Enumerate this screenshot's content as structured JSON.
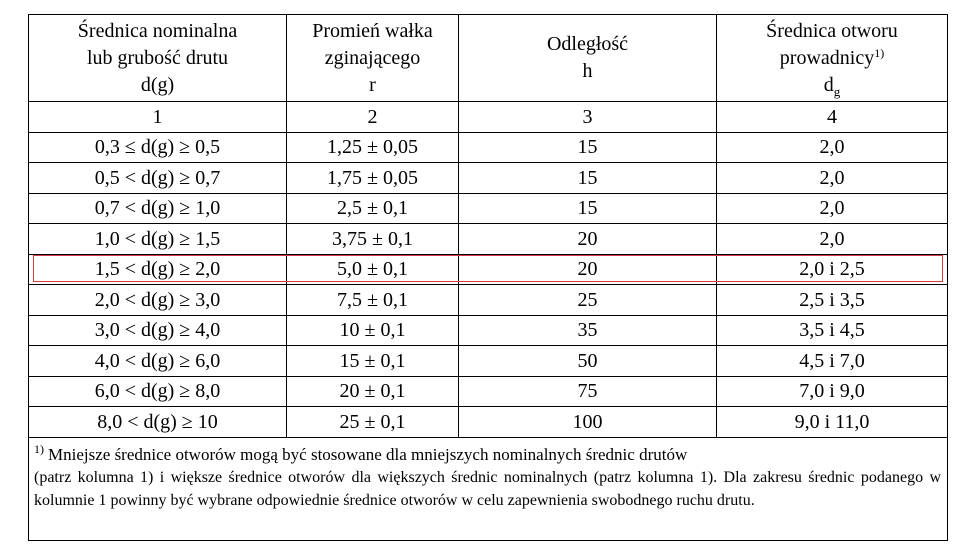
{
  "table": {
    "header": [
      {
        "lines": [
          "Średnica nominalna",
          "lub grubość drutu",
          "d(g)"
        ]
      },
      {
        "lines": [
          "Promień wałka",
          "zginającego",
          "r"
        ]
      },
      {
        "lines": [
          "Odległość",
          "h"
        ]
      },
      {
        "lines": [
          "Średnica otworu",
          "prowadnicy"
        ],
        "superscript": "1)",
        "symbol": "d",
        "subscript": "g"
      }
    ],
    "index_row": [
      1,
      2,
      3,
      4
    ],
    "rows": [
      [
        "0,3 ≤ d(g) ≥ 0,5",
        "1,25 ± 0,05",
        15,
        "2,0"
      ],
      [
        "0,5 < d(g) ≥ 0,7",
        "1,75 ± 0,05",
        15,
        "2,0"
      ],
      [
        "0,7 < d(g) ≥ 1,0",
        "2,5 ± 0,1",
        15,
        "2,0"
      ],
      [
        "1,0 < d(g) ≥ 1,5",
        "3,75 ± 0,1",
        20,
        "2,0"
      ],
      [
        "1,5 < d(g) ≥ 2,0",
        "5,0 ± 0,1",
        20,
        "2,0 i 2,5"
      ],
      [
        "2,0 < d(g) ≥ 3,0",
        "7,5 ± 0,1",
        25,
        "2,5 i 3,5"
      ],
      [
        "3,0 < d(g) ≥ 4,0",
        "10 ± 0,1",
        35,
        "3,5 i 4,5"
      ],
      [
        "4,0 < d(g) ≥ 6,0",
        "15 ± 0,1",
        50,
        "4,5 i 7,0"
      ],
      [
        "6,0 < d(g) ≥ 8,0",
        "20 ± 0,1",
        75,
        "7,0 i 9,0"
      ],
      [
        "8,0 < d(g) ≥ 10",
        "25 ± 0,1",
        100,
        "9,0 i 11,0"
      ]
    ]
  },
  "footnote": {
    "marker": "1)",
    "first_line": "Mniejsze średnice otworów mogą być stosowane dla mniejszych nominalnych średnic drutów",
    "text": "(patrz kolumna 1) i większe średnice otworów dla większych średnic nominalnych (patrz kolumna 1). Dla zakresu średnic podanego w kolumnie 1 powinny być wybrane odpowiednie średnice otworów w celu zapewnienia swobodnego ruchu drutu."
  }
}
